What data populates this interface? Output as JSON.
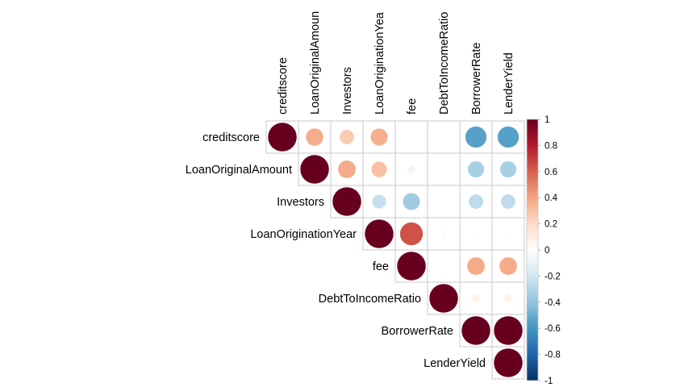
{
  "chart_data": {
    "type": "heatmap",
    "style": "upper-triangle circle correlation matrix",
    "variables": [
      "creditscore",
      "LoanOriginalAmount",
      "Investors",
      "LoanOriginationYear",
      "fee",
      "DebtToIncomeRatio",
      "BorrowerRate",
      "LenderYield"
    ],
    "column_labels": [
      "creditscore",
      "LoanOriginalAmoun",
      "Investors",
      "LoanOriginationYea",
      "fee",
      "DebtToIncomeRatio",
      "BorrowerRate",
      "LenderYield"
    ],
    "matrix": [
      [
        1.0,
        0.37,
        0.26,
        0.36,
        0.0,
        0.0,
        -0.55,
        -0.55
      ],
      [
        0.37,
        1.0,
        0.38,
        0.3,
        -0.07,
        0.0,
        -0.33,
        -0.33
      ],
      [
        0.26,
        0.38,
        1.0,
        -0.24,
        -0.36,
        0.0,
        -0.26,
        -0.26
      ],
      [
        0.36,
        0.3,
        -0.24,
        1.0,
        0.64,
        0.03,
        0.02,
        0.02
      ],
      [
        0.0,
        -0.07,
        -0.36,
        0.64,
        1.0,
        0.01,
        0.38,
        0.38
      ],
      [
        0.0,
        0.0,
        0.0,
        0.03,
        0.01,
        1.0,
        0.08,
        0.08
      ],
      [
        -0.55,
        -0.33,
        -0.26,
        0.02,
        0.38,
        0.08,
        1.0,
        1.0
      ],
      [
        -0.55,
        -0.33,
        -0.26,
        0.02,
        0.38,
        0.08,
        1.0,
        1.0
      ]
    ],
    "color_scale": {
      "min": -1,
      "max": 1,
      "ticks": [
        "1",
        "0.8",
        "0.6",
        "0.4",
        "0.2",
        "0",
        "-0.2",
        "-0.4",
        "-0.6",
        "-0.8",
        "-1"
      ],
      "colors": [
        "#67001F",
        "#B2182B",
        "#D6604D",
        "#F4A582",
        "#FDDBC7",
        "#FFFFFF",
        "#D1E5F0",
        "#92C5DE",
        "#4393C3",
        "#2166AC",
        "#053061"
      ]
    },
    "legend_position": "right",
    "grid": true
  }
}
